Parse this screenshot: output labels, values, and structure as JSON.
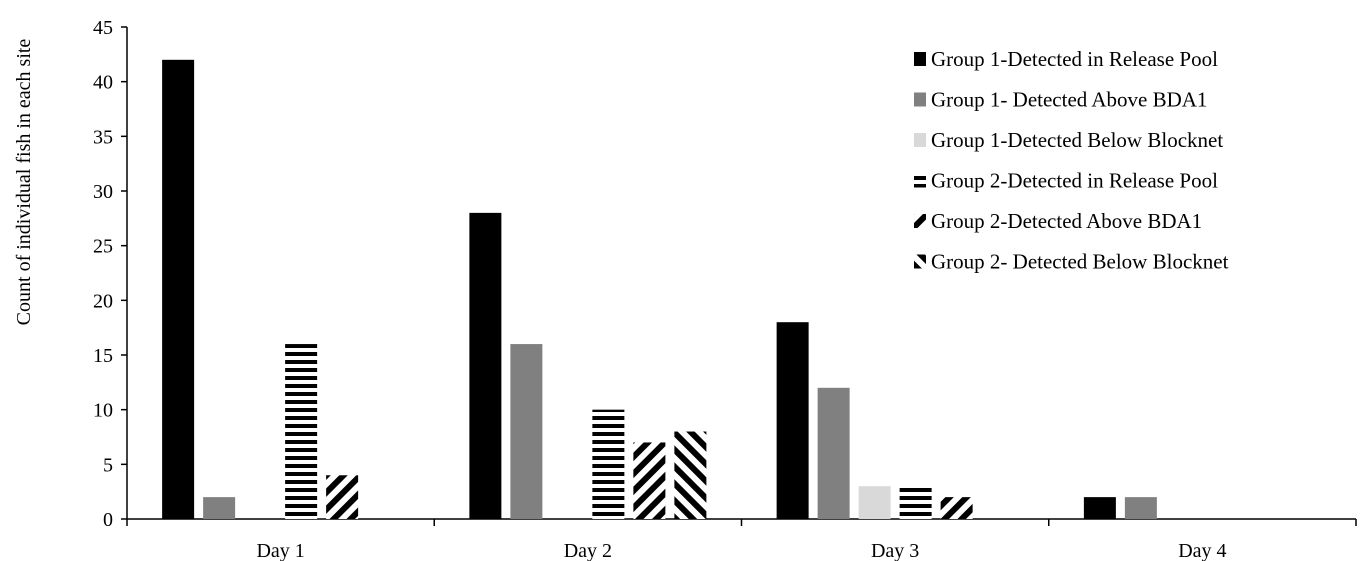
{
  "chart_data": {
    "type": "bar",
    "title": "",
    "xlabel": "",
    "ylabel": "Count of individual fish in each site",
    "ylim": [
      0,
      45
    ],
    "yticks": [
      0,
      5,
      10,
      15,
      20,
      25,
      30,
      35,
      40,
      45
    ],
    "grid": false,
    "legend_position": "top-right",
    "categories": [
      "Day 1",
      "Day 2",
      "Day 3",
      "Day 4"
    ],
    "series": [
      {
        "name": "Group 1-Detected in Release Pool",
        "values": [
          42,
          28,
          18,
          2
        ],
        "color": "#000000",
        "pattern": "solid"
      },
      {
        "name": "Group 1- Detected Above BDA1",
        "values": [
          2,
          16,
          12,
          2
        ],
        "color": "#808080",
        "pattern": "solid"
      },
      {
        "name": "Group 1-Detected Below Blocknet",
        "values": [
          0,
          0,
          3,
          0
        ],
        "color": "#d9d9d9",
        "pattern": "solid"
      },
      {
        "name": "Group 2-Detected in Release Pool",
        "values": [
          16,
          10,
          3,
          0
        ],
        "color": "#000000",
        "pattern": "horizontal"
      },
      {
        "name": "Group 2-Detected Above BDA1",
        "values": [
          4,
          7,
          2,
          0
        ],
        "color": "#000000",
        "pattern": "diag-down"
      },
      {
        "name": "Group 2- Detected Below Blocknet",
        "values": [
          0,
          8,
          0,
          0
        ],
        "color": "#000000",
        "pattern": "diag-up"
      }
    ]
  }
}
